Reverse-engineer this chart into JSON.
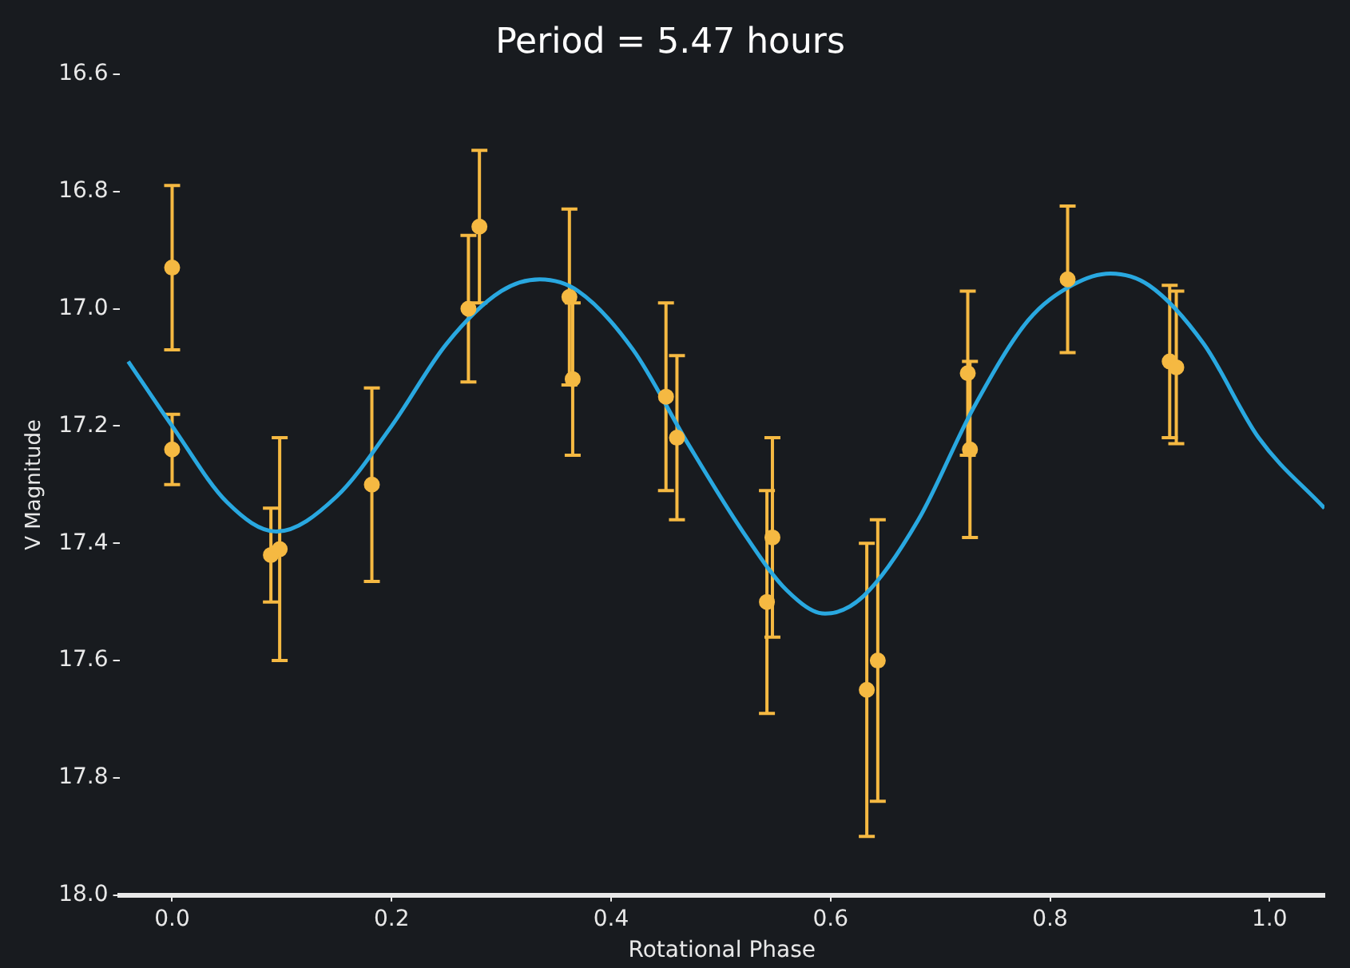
{
  "chart_data": {
    "type": "scatter",
    "title": "Period = 5.47 hours",
    "xlabel": "Rotational Phase",
    "ylabel": "V Magnitude",
    "xlim": [
      -0.048,
      1.05
    ],
    "ylim": [
      18.0,
      16.6
    ],
    "xticks": [
      {
        "value": 0,
        "label": "0.0"
      },
      {
        "value": 0.2,
        "label": "0.2"
      },
      {
        "value": 0.4,
        "label": "0.4"
      },
      {
        "value": 0.6,
        "label": "0.6"
      },
      {
        "value": 0.8,
        "label": "0.8"
      },
      {
        "value": 1,
        "label": "1.0"
      }
    ],
    "yticks": [
      {
        "value": 16.6,
        "label": "16.6"
      },
      {
        "value": 16.8,
        "label": "16.8"
      },
      {
        "value": 17.0,
        "label": "17.0"
      },
      {
        "value": 17.2,
        "label": "17.2"
      },
      {
        "value": 17.4,
        "label": "17.4"
      },
      {
        "value": 17.6,
        "label": "17.6"
      },
      {
        "value": 17.8,
        "label": "17.8"
      },
      {
        "value": 18.0,
        "label": "18.0"
      }
    ],
    "grid": false,
    "legend": false,
    "marker": "circle",
    "series": [
      {
        "color": "#f5b942",
        "x": [
          0.0,
          0.0,
          0.09,
          0.098,
          0.182,
          0.27,
          0.28,
          0.362,
          0.365,
          0.45,
          0.46,
          0.542,
          0.547,
          0.633,
          0.643,
          0.725,
          0.727,
          0.816,
          0.909,
          0.915
        ],
        "values": [
          16.93,
          17.24,
          17.42,
          17.41,
          17.3,
          17.0,
          16.86,
          16.98,
          17.12,
          17.15,
          17.22,
          17.5,
          17.39,
          17.65,
          17.6,
          17.11,
          17.24,
          16.95,
          17.09,
          17.1
        ],
        "errors": [
          0.14,
          0.06,
          0.08,
          0.19,
          0.165,
          0.125,
          0.13,
          0.15,
          0.13,
          0.16,
          0.14,
          0.19,
          0.17,
          0.25,
          0.24,
          0.14,
          0.15,
          0.125,
          0.13,
          0.13
        ]
      },
      {
        "type": "line",
        "color": "#29a8e0",
        "marker": "none",
        "line_style": "solid",
        "x": [
          -0.04,
          0.0,
          0.05,
          0.095,
          0.15,
          0.2,
          0.25,
          0.3,
          0.335,
          0.37,
          0.42,
          0.47,
          0.52,
          0.56,
          0.595,
          0.63,
          0.68,
          0.73,
          0.78,
          0.82,
          0.855,
          0.89,
          0.94,
          0.99,
          1.05
        ],
        "values": [
          17.09,
          17.2,
          17.33,
          17.38,
          17.32,
          17.2,
          17.06,
          16.97,
          16.95,
          16.97,
          17.07,
          17.23,
          17.38,
          17.48,
          17.52,
          17.49,
          17.36,
          17.17,
          17.02,
          16.96,
          16.94,
          16.96,
          17.06,
          17.22,
          17.34
        ]
      }
    ]
  }
}
